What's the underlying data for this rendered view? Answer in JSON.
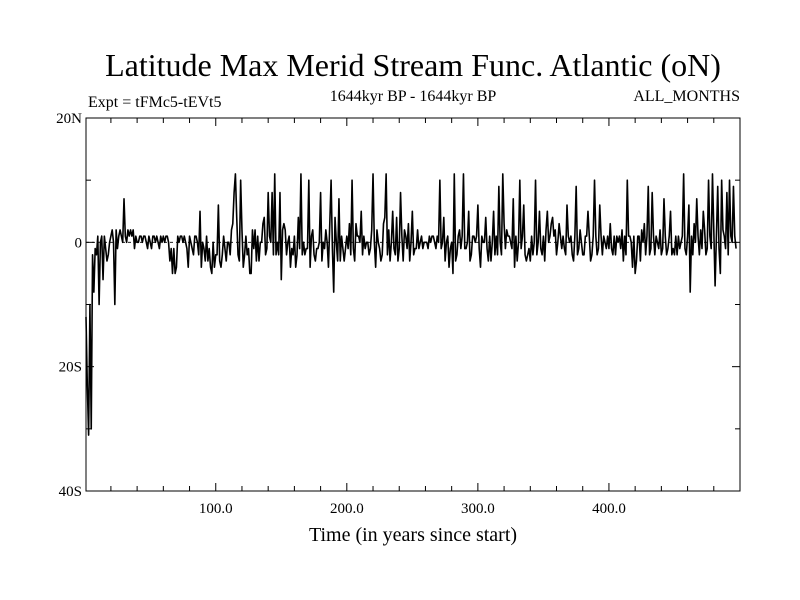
{
  "chart_data": {
    "type": "line",
    "title": "Latitude Max Merid Stream Func. Atlantic (oN)",
    "subtitle_left": "Expt = tFMc5-tEVt5",
    "subtitle_center": "1644kyr BP - 1644kyr BP",
    "subtitle_right": "ALL_MONTHS",
    "xlabel": "Time (in years since start)",
    "ylabel": "",
    "xlim": [
      1,
      500
    ],
    "ylim": [
      -40,
      20
    ],
    "x_ticks": [
      {
        "value": 100,
        "label": "100.0"
      },
      {
        "value": 200,
        "label": "200.0"
      },
      {
        "value": 300,
        "label": "300.0"
      },
      {
        "value": 400,
        "label": "400.0"
      }
    ],
    "y_ticks": [
      {
        "value": 20,
        "label": "20N"
      },
      {
        "value": 0,
        "label": "0"
      },
      {
        "value": -20,
        "label": "20S"
      },
      {
        "value": -40,
        "label": "40S"
      }
    ],
    "reference_line": 0,
    "series": [
      {
        "color": "#000000",
        "x_start": 1,
        "x_step": 1,
        "values": [
          -12,
          -23,
          -31,
          -10,
          -30,
          -2,
          -8,
          -1,
          -2,
          1,
          -10,
          0,
          1,
          -6,
          1,
          -1,
          -3,
          -2,
          0,
          1,
          2,
          0,
          -10,
          2,
          -1,
          1,
          2,
          1,
          0,
          7,
          1,
          0,
          2,
          1,
          2,
          1,
          2,
          -1,
          1,
          0,
          0,
          1,
          1,
          0,
          1,
          1,
          0,
          -1,
          1,
          0,
          -1,
          1,
          1,
          0,
          1,
          0,
          -1,
          1,
          0,
          1,
          0,
          1,
          1,
          0,
          -3,
          -1,
          -5,
          -1,
          -5,
          -4,
          1,
          0,
          1,
          1,
          0,
          1,
          0,
          -1,
          -4,
          1,
          0,
          -1,
          -2,
          1,
          1,
          0,
          -2,
          5,
          -4,
          0,
          -1,
          -3,
          1,
          -3,
          -1,
          -4,
          -5,
          0,
          -4,
          -2,
          -2,
          6,
          -3,
          -4,
          -2,
          1,
          -1,
          -3,
          0,
          0,
          -2,
          2,
          3,
          8,
          11,
          4,
          -2,
          -3,
          10,
          2,
          -4,
          -2,
          1,
          -2,
          -1,
          -5,
          -5,
          2,
          -1,
          2,
          -3,
          1,
          -3,
          0,
          0,
          3,
          4,
          -2,
          -1,
          8,
          1,
          0,
          8,
          -2,
          11,
          -2,
          0,
          -2,
          8,
          -6,
          2,
          3,
          2,
          -2,
          0,
          1,
          -4,
          -1,
          -2,
          1,
          -4,
          -2,
          4,
          -1,
          11,
          -2,
          0,
          -2,
          -1,
          -1,
          10,
          -4,
          1,
          2,
          -2,
          -3,
          -1,
          -1,
          0,
          8,
          -3,
          0,
          -1,
          2,
          0,
          -4,
          3,
          10,
          -1,
          -8,
          4,
          0,
          -3,
          7,
          -3,
          1,
          -1,
          -3,
          -1,
          1,
          -1,
          3,
          -2,
          10,
          -1,
          -3,
          3,
          1,
          1,
          0,
          5,
          -2,
          1,
          -1,
          0,
          0,
          -2,
          -1,
          2,
          11,
          0,
          -4,
          2,
          0,
          -1,
          -3,
          -2,
          3,
          4,
          11,
          -2,
          2,
          -3,
          0,
          5,
          -1,
          -2,
          4,
          -3,
          -1,
          8,
          1,
          -3,
          2,
          1,
          -1,
          3,
          -3,
          0,
          5,
          -2,
          -1,
          -1,
          2,
          -1,
          0,
          1,
          -1,
          0,
          0,
          0,
          -1,
          1,
          0,
          1,
          1,
          0,
          -1,
          1,
          0,
          10,
          -1,
          0,
          4,
          -3,
          0,
          1,
          -4,
          -1,
          0,
          -5,
          11,
          -3,
          -2,
          1,
          2,
          -1,
          1,
          11,
          -1,
          -1,
          0,
          5,
          -3,
          -2,
          1,
          1,
          0,
          1,
          6,
          -1,
          -4,
          1,
          0,
          0,
          4,
          -1,
          -3,
          1,
          -3,
          0,
          5,
          -2,
          1,
          -2,
          9,
          0,
          -2,
          11,
          3,
          -1,
          2,
          1,
          1,
          0,
          -1,
          7,
          -4,
          1,
          -3,
          0,
          10,
          -1,
          1,
          6,
          -2,
          -3,
          -2,
          -1,
          -3,
          1,
          -2,
          0,
          10,
          -2,
          0,
          5,
          -1,
          -2,
          1,
          -3,
          2,
          5,
          0,
          1,
          3,
          4,
          1,
          2,
          -2,
          0,
          3,
          1,
          -1,
          1,
          -1,
          -2,
          6,
          1,
          0,
          1,
          -2,
          -3,
          1,
          9,
          -2,
          -1,
          2,
          0,
          -2,
          -2,
          1,
          1,
          5,
          1,
          -3,
          -2,
          1,
          10,
          1,
          -2,
          -1,
          6,
          1,
          -2,
          1,
          0,
          -1,
          1,
          -1,
          3,
          -1,
          -2,
          1,
          -2,
          1,
          0,
          1,
          -1,
          2,
          -3,
          1,
          -2,
          10,
          1,
          1,
          0,
          -4,
          1,
          -5,
          -3,
          1,
          1,
          -3,
          2,
          0,
          3,
          -2,
          1,
          9,
          -2,
          -1,
          8,
          1,
          -2,
          1,
          0,
          -1,
          2,
          -2,
          -1,
          7,
          1,
          -2,
          -1,
          1,
          5,
          -2,
          -1,
          -2,
          1,
          -2,
          1,
          -1,
          0,
          1,
          11,
          -1,
          -2,
          1,
          6,
          -8,
          1,
          -2,
          3,
          0,
          7,
          1,
          -2,
          2,
          -1,
          5,
          2,
          -2,
          -1,
          10,
          1,
          -1,
          11,
          2,
          -7,
          1,
          9,
          -1,
          -5,
          10,
          2,
          1,
          -1,
          8,
          -2,
          10,
          1,
          0,
          9,
          1,
          -1
        ]
      }
    ]
  }
}
